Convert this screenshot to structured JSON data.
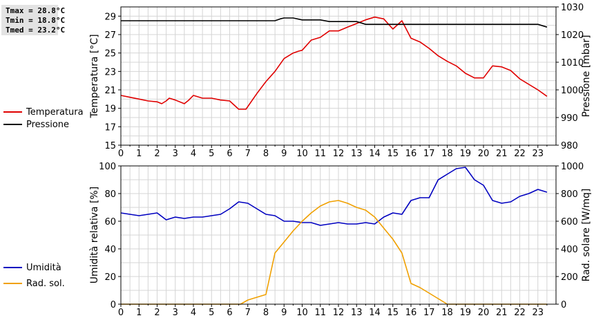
{
  "stats": {
    "tmax": "Tmax = 28.8°C",
    "tmin": "Tmin = 18.8°C",
    "tmed": "Tmed = 23.2°C"
  },
  "colors": {
    "temperature": "#e00000",
    "pressure": "#000000",
    "humidity": "#0000c0",
    "radiation": "#f0a000",
    "grid": "#d4d4d4"
  },
  "chart_data": [
    {
      "type": "line",
      "title": "",
      "xlabel": "",
      "ylabel": "Temperatura [°C]",
      "ylabel_right": "Pressione [mbar]",
      "xlim": [
        0,
        24
      ],
      "ylim": [
        15,
        30
      ],
      "ylim_right": [
        980,
        1030
      ],
      "x_ticks": [
        "0",
        "1",
        "2",
        "3",
        "4",
        "5",
        "6",
        "7",
        "8",
        "9",
        "10",
        "11",
        "12",
        "13",
        "14",
        "15",
        "16",
        "17",
        "18",
        "19",
        "20",
        "21",
        "22",
        "23"
      ],
      "y_ticks": [
        "15",
        "17",
        "19",
        "21",
        "23",
        "25",
        "27",
        "29"
      ],
      "y_ticks_right": [
        "980",
        "990",
        "1000",
        "1010",
        "1020",
        "1030"
      ],
      "grid": true,
      "legend": "left",
      "series": [
        {
          "name": "Temperatura",
          "axis": "left",
          "color": "#e00000",
          "points": [
            [
              0,
              20.4
            ],
            [
              0.5,
              20.2
            ],
            [
              1,
              20.0
            ],
            [
              1.5,
              19.8
            ],
            [
              2,
              19.7
            ],
            [
              2.25,
              19.5
            ],
            [
              2.5,
              19.8
            ],
            [
              2.67,
              20.1
            ],
            [
              3,
              19.9
            ],
            [
              3.5,
              19.5
            ],
            [
              3.75,
              19.9
            ],
            [
              4,
              20.4
            ],
            [
              4.5,
              20.1
            ],
            [
              5,
              20.1
            ],
            [
              5.5,
              19.9
            ],
            [
              6,
              19.8
            ],
            [
              6.5,
              18.9
            ],
            [
              6.9,
              18.9
            ],
            [
              7.5,
              20.6
            ],
            [
              8,
              21.9
            ],
            [
              8.5,
              23.0
            ],
            [
              9,
              24.4
            ],
            [
              9.5,
              25.0
            ],
            [
              9.8,
              25.2
            ],
            [
              10,
              25.3
            ],
            [
              10.5,
              26.4
            ],
            [
              11,
              26.7
            ],
            [
              11.5,
              27.4
            ],
            [
              12,
              27.4
            ],
            [
              12.5,
              27.8
            ],
            [
              13,
              28.2
            ],
            [
              13.5,
              28.6
            ],
            [
              14,
              28.9
            ],
            [
              14.5,
              28.7
            ],
            [
              15,
              27.6
            ],
            [
              15.5,
              28.5
            ],
            [
              16,
              26.6
            ],
            [
              16.5,
              26.2
            ],
            [
              17,
              25.5
            ],
            [
              17.5,
              24.7
            ],
            [
              18,
              24.1
            ],
            [
              18.5,
              23.6
            ],
            [
              19,
              22.8
            ],
            [
              19.5,
              22.3
            ],
            [
              20,
              22.3
            ],
            [
              20.5,
              23.6
            ],
            [
              21,
              23.5
            ],
            [
              21.5,
              23.1
            ],
            [
              22,
              22.2
            ],
            [
              22.5,
              21.6
            ],
            [
              23,
              21.0
            ],
            [
              23.5,
              20.3
            ]
          ]
        },
        {
          "name": "Pressione",
          "axis": "right",
          "color": "#000000",
          "points": [
            [
              0,
              1025
            ],
            [
              8.5,
              1025
            ],
            [
              8.8,
              1025.7
            ],
            [
              9,
              1026
            ],
            [
              9.5,
              1026
            ],
            [
              10,
              1025.3
            ],
            [
              11,
              1025.3
            ],
            [
              11.5,
              1024.7
            ],
            [
              13,
              1024.7
            ],
            [
              13.5,
              1023.7
            ],
            [
              23,
              1023.7
            ],
            [
              23.5,
              1022.7
            ]
          ]
        }
      ]
    },
    {
      "type": "line",
      "title": "",
      "xlabel": "",
      "ylabel": "Umidità relativa [%]",
      "ylabel_right": "Rad. solare [W/mq]",
      "xlim": [
        0,
        24
      ],
      "ylim": [
        0,
        100
      ],
      "ylim_right": [
        0,
        1000
      ],
      "x_ticks": [
        "0",
        "1",
        "2",
        "3",
        "4",
        "5",
        "6",
        "7",
        "8",
        "9",
        "10",
        "11",
        "12",
        "13",
        "14",
        "15",
        "16",
        "17",
        "18",
        "19",
        "20",
        "21",
        "22",
        "23"
      ],
      "y_ticks": [
        "0",
        "20",
        "40",
        "60",
        "80",
        "100"
      ],
      "y_ticks_right": [
        "0",
        "200",
        "400",
        "600",
        "800",
        "1000"
      ],
      "grid": true,
      "legend": "left",
      "series": [
        {
          "name": "Umidità",
          "axis": "left",
          "color": "#0000c0",
          "points": [
            [
              0,
              66
            ],
            [
              0.5,
              65
            ],
            [
              1,
              64
            ],
            [
              1.5,
              65
            ],
            [
              2,
              66
            ],
            [
              2.5,
              61
            ],
            [
              3,
              63
            ],
            [
              3.5,
              62
            ],
            [
              4,
              63
            ],
            [
              4.5,
              63
            ],
            [
              5,
              64
            ],
            [
              5.5,
              65
            ],
            [
              6,
              69
            ],
            [
              6.5,
              74
            ],
            [
              7,
              73
            ],
            [
              7.5,
              69
            ],
            [
              8,
              65
            ],
            [
              8.5,
              64
            ],
            [
              9,
              60
            ],
            [
              9.5,
              60
            ],
            [
              10,
              59
            ],
            [
              10.5,
              59
            ],
            [
              11,
              57
            ],
            [
              11.5,
              58
            ],
            [
              12,
              59
            ],
            [
              12.5,
              58
            ],
            [
              13,
              58
            ],
            [
              13.5,
              59
            ],
            [
              14,
              58
            ],
            [
              14.5,
              63
            ],
            [
              15,
              66
            ],
            [
              15.5,
              65
            ],
            [
              16,
              75
            ],
            [
              16.5,
              77
            ],
            [
              17,
              77
            ],
            [
              17.5,
              90
            ],
            [
              18,
              94
            ],
            [
              18.5,
              98
            ],
            [
              19,
              99
            ],
            [
              19.5,
              90
            ],
            [
              20,
              86
            ],
            [
              20.5,
              75
            ],
            [
              21,
              73
            ],
            [
              21.5,
              74
            ],
            [
              22,
              78
            ],
            [
              22.5,
              80
            ],
            [
              23,
              83
            ],
            [
              23.5,
              81
            ]
          ]
        },
        {
          "name": "Rad. sol.",
          "axis": "right",
          "color": "#f0a000",
          "points": [
            [
              0,
              0
            ],
            [
              6.6,
              0
            ],
            [
              7,
              30
            ],
            [
              7.5,
              50
            ],
            [
              8,
              70
            ],
            [
              8.5,
              370
            ],
            [
              9,
              450
            ],
            [
              9.5,
              530
            ],
            [
              10,
              600
            ],
            [
              10.5,
              660
            ],
            [
              11,
              710
            ],
            [
              11.5,
              740
            ],
            [
              12,
              750
            ],
            [
              12.5,
              730
            ],
            [
              13,
              700
            ],
            [
              13.5,
              680
            ],
            [
              14,
              630
            ],
            [
              14.5,
              550
            ],
            [
              15,
              470
            ],
            [
              15.5,
              370
            ],
            [
              16,
              150
            ],
            [
              16.5,
              120
            ],
            [
              17,
              80
            ],
            [
              17.5,
              40
            ],
            [
              18,
              0
            ],
            [
              23.5,
              0
            ]
          ]
        }
      ]
    }
  ]
}
